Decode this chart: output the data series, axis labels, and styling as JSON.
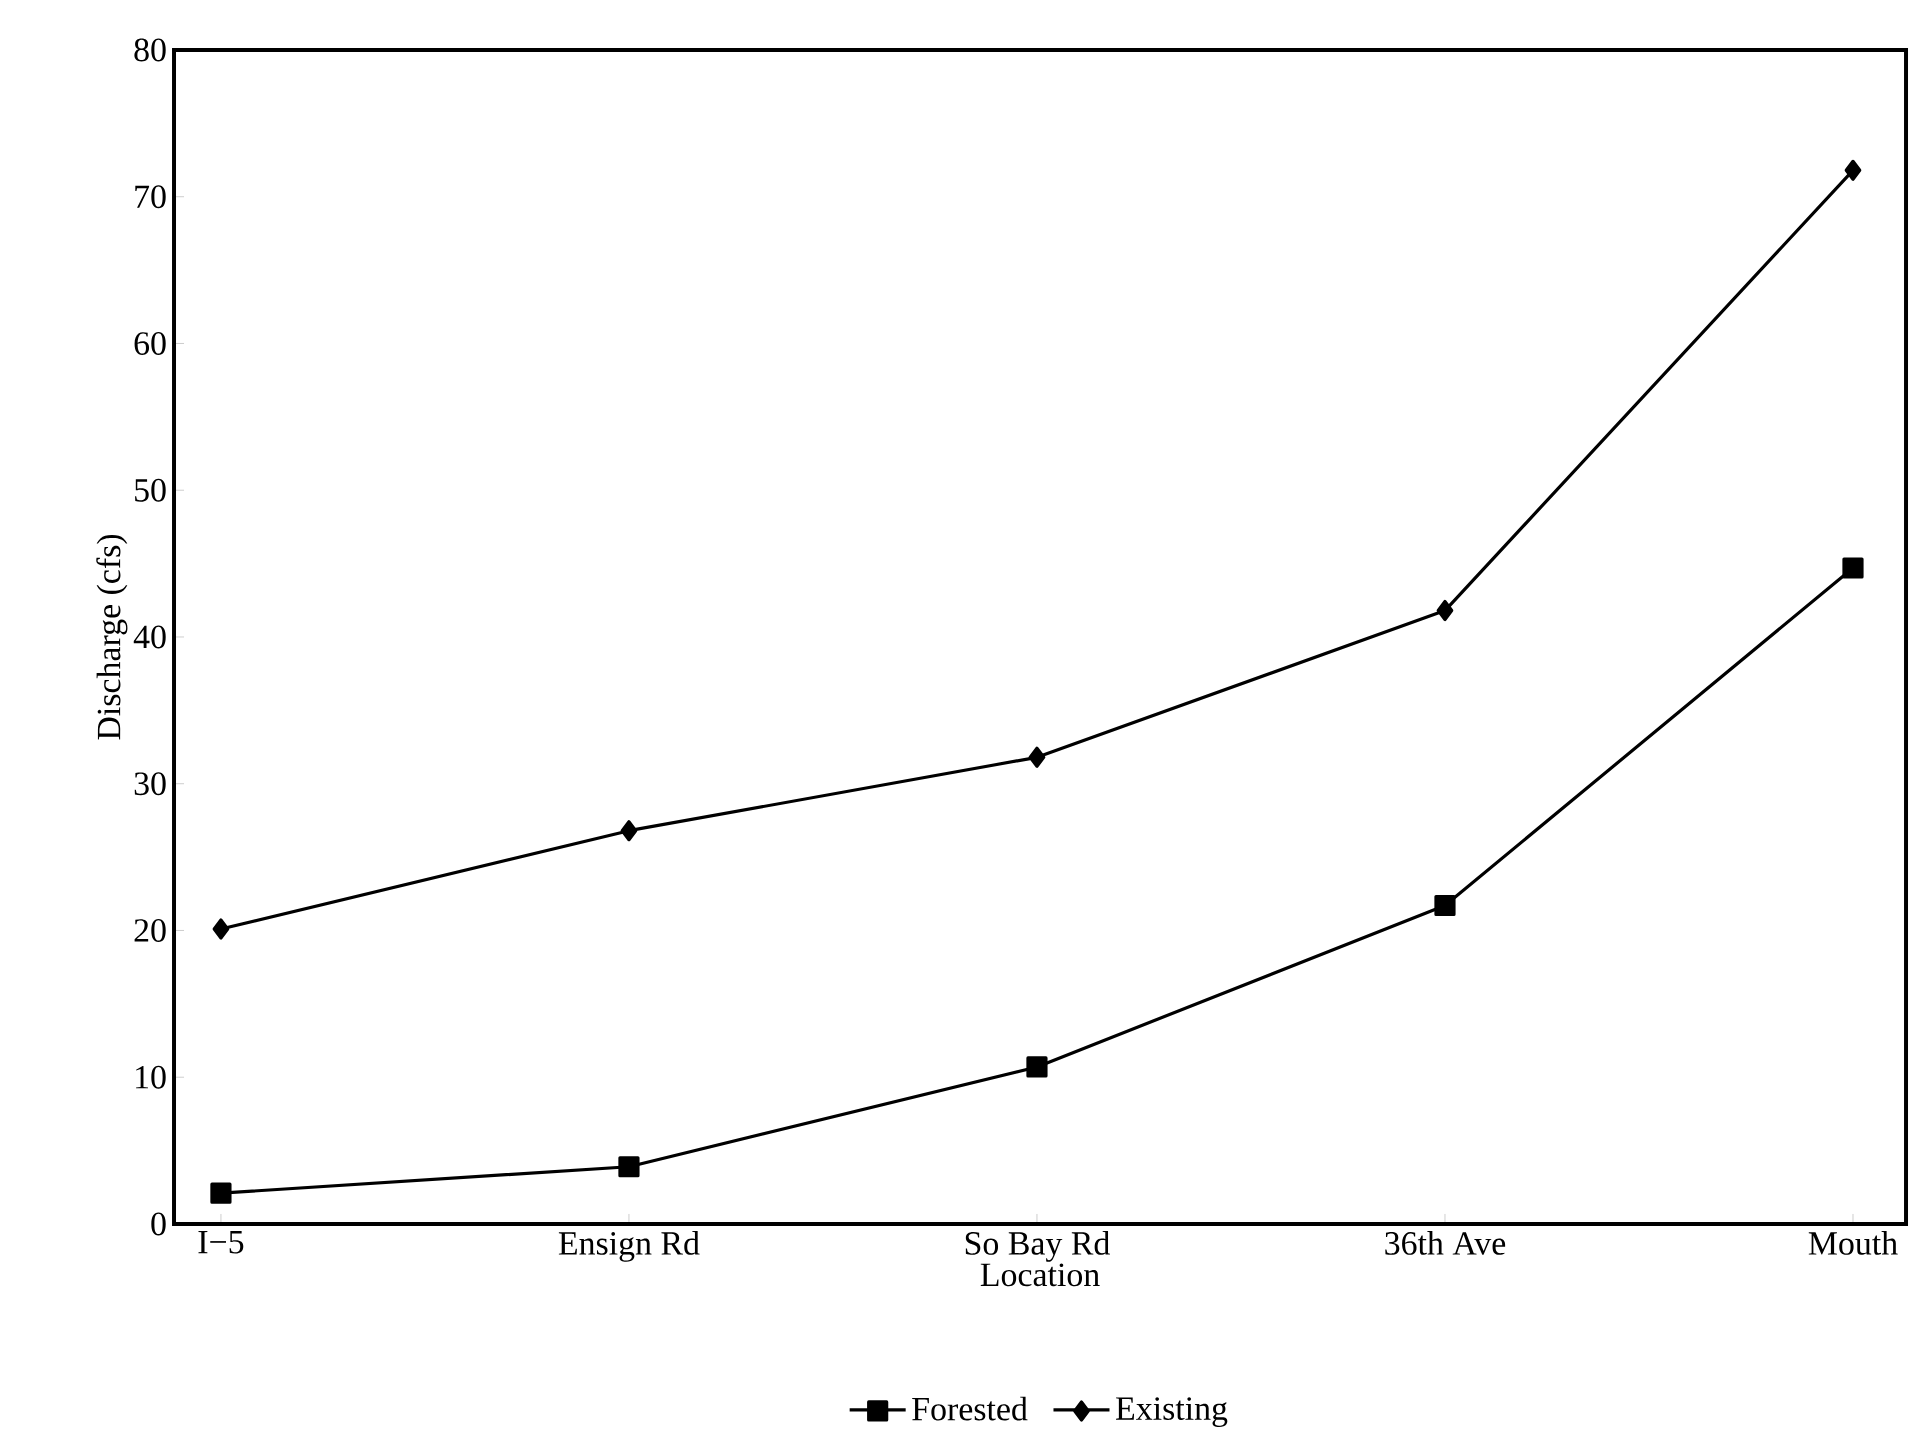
{
  "chart_data": {
    "type": "line",
    "xlabel": "Location",
    "ylabel": "Discharge  (cfs)",
    "categories": [
      "I−5",
      "Ensign Rd",
      "So Bay Rd",
      "36th Ave",
      "Mouth"
    ],
    "series": [
      {
        "name": "Forested",
        "color": "#000000",
        "marker": "square",
        "values": [
          2.1,
          3.9,
          10.7,
          21.7,
          44.7
        ]
      },
      {
        "name": "Existing",
        "color": "#000000",
        "marker": "diamond",
        "values": [
          20.1,
          26.8,
          31.8,
          41.8,
          71.8
        ]
      }
    ],
    "ylim": [
      0,
      80
    ],
    "yticks": [
      0,
      10,
      20,
      30,
      40,
      50,
      60,
      70,
      80
    ],
    "grid": false,
    "legend": "bottom",
    "line_style": "solid"
  }
}
